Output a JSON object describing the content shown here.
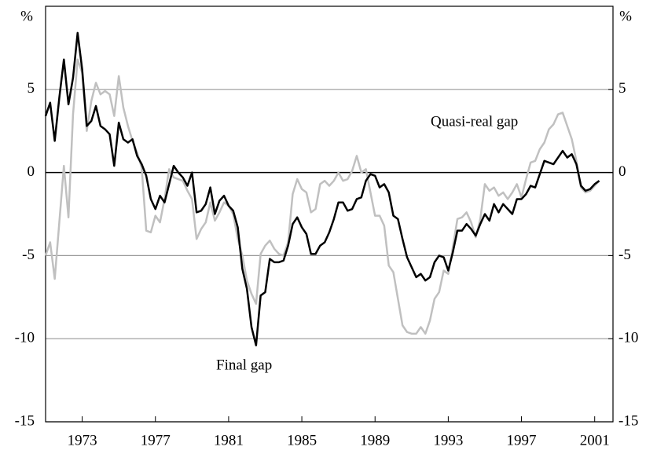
{
  "chart_data": {
    "type": "line",
    "unit_label": "%",
    "annotations": [
      {
        "text": "Quasi-real gap",
        "series": 1
      },
      {
        "text": "Final gap",
        "series": 0
      }
    ],
    "x": [
      1971,
      1971.25,
      1971.5,
      1971.75,
      1972,
      1972.25,
      1972.5,
      1972.75,
      1973,
      1973.25,
      1973.5,
      1973.75,
      1974,
      1974.25,
      1974.5,
      1974.75,
      1975,
      1975.25,
      1975.5,
      1975.75,
      1976,
      1976.25,
      1976.5,
      1976.75,
      1977,
      1977.25,
      1977.5,
      1977.75,
      1978,
      1978.25,
      1978.5,
      1978.75,
      1979,
      1979.25,
      1979.5,
      1979.75,
      1980,
      1980.25,
      1980.5,
      1980.75,
      1981,
      1981.25,
      1981.5,
      1981.75,
      1982,
      1982.25,
      1982.5,
      1982.75,
      1983,
      1983.25,
      1983.5,
      1983.75,
      1984,
      1984.25,
      1984.5,
      1984.75,
      1985,
      1985.25,
      1985.5,
      1985.75,
      1986,
      1986.25,
      1986.5,
      1986.75,
      1987,
      1987.25,
      1987.5,
      1987.75,
      1988,
      1988.25,
      1988.5,
      1988.75,
      1989,
      1989.25,
      1989.5,
      1989.75,
      1990,
      1990.25,
      1990.5,
      1990.75,
      1991,
      1991.25,
      1991.5,
      1991.75,
      1992,
      1992.25,
      1992.5,
      1992.75,
      1993,
      1993.25,
      1993.5,
      1993.75,
      1994,
      1994.25,
      1994.5,
      1994.75,
      1995,
      1995.25,
      1995.5,
      1995.75,
      1996,
      1996.25,
      1996.5,
      1996.75,
      1997,
      1997.25,
      1997.5,
      1997.75,
      1998,
      1998.25,
      1998.5,
      1998.75,
      1999,
      1999.25,
      1999.5,
      1999.75,
      2000,
      2000.25,
      2000.5,
      2000.75,
      2001,
      2001.25
    ],
    "series": [
      {
        "name": "Final gap",
        "color": "#000000",
        "values": [
          3.4,
          4.2,
          1.9,
          4.5,
          6.8,
          4.1,
          5.7,
          8.4,
          6.2,
          2.8,
          3.1,
          4.0,
          2.8,
          2.6,
          2.3,
          0.4,
          3.0,
          2.0,
          1.8,
          2.0,
          1.0,
          0.5,
          -0.2,
          -1.6,
          -2.2,
          -1.4,
          -1.8,
          -0.7,
          0.4,
          0.0,
          -0.3,
          -0.8,
          0.0,
          -2.4,
          -2.3,
          -1.9,
          -0.9,
          -2.5,
          -1.7,
          -1.4,
          -2.0,
          -2.3,
          -3.3,
          -5.8,
          -7.0,
          -9.3,
          -10.4,
          -7.4,
          -7.2,
          -5.2,
          -5.4,
          -5.4,
          -5.3,
          -4.4,
          -3.1,
          -2.7,
          -3.3,
          -3.7,
          -4.9,
          -4.9,
          -4.4,
          -4.2,
          -3.6,
          -2.8,
          -1.8,
          -1.8,
          -2.3,
          -2.2,
          -1.6,
          -1.5,
          -0.5,
          -0.1,
          -0.2,
          -0.9,
          -0.7,
          -1.2,
          -2.6,
          -2.8,
          -4.0,
          -5.1,
          -5.7,
          -6.3,
          -6.1,
          -6.5,
          -6.3,
          -5.4,
          -5.0,
          -5.1,
          -5.9,
          -4.8,
          -3.5,
          -3.5,
          -3.1,
          -3.4,
          -3.8,
          -3.1,
          -2.5,
          -2.9,
          -1.9,
          -2.4,
          -1.9,
          -2.2,
          -2.5,
          -1.6,
          -1.6,
          -1.3,
          -0.8,
          -0.9,
          -0.1,
          0.7,
          0.6,
          0.5,
          0.9,
          1.3,
          0.9,
          1.1,
          0.5,
          -0.8,
          -1.1,
          -1.0,
          -0.7,
          -0.5
        ]
      },
      {
        "name": "Quasi-real gap",
        "color": "#c0c0c0",
        "values": [
          -5.0,
          -4.2,
          -6.4,
          -3.0,
          0.4,
          -2.7,
          3.5,
          6.8,
          6.0,
          2.5,
          4.3,
          5.4,
          4.7,
          4.9,
          4.7,
          3.4,
          5.8,
          3.9,
          2.8,
          1.9,
          1.2,
          0.3,
          -3.5,
          -3.6,
          -2.6,
          -3.0,
          -1.6,
          0.2,
          -0.3,
          -0.4,
          -0.5,
          -1.1,
          -1.6,
          -4.0,
          -3.4,
          -3.0,
          -1.8,
          -2.9,
          -2.4,
          -1.8,
          -2.0,
          -2.5,
          -4.0,
          -5.0,
          -6.5,
          -7.3,
          -7.9,
          -4.9,
          -4.4,
          -4.1,
          -4.6,
          -4.9,
          -5.0,
          -4.2,
          -1.3,
          -0.4,
          -1.0,
          -1.2,
          -2.4,
          -2.2,
          -0.7,
          -0.5,
          -0.8,
          -0.5,
          0.0,
          -0.5,
          -0.4,
          0.1,
          1.0,
          0.0,
          0.2,
          -1.2,
          -2.6,
          -2.6,
          -3.2,
          -5.6,
          -6.0,
          -7.6,
          -9.2,
          -9.6,
          -9.7,
          -9.7,
          -9.3,
          -9.7,
          -8.9,
          -7.6,
          -7.2,
          -5.9,
          -6.1,
          -4.5,
          -2.8,
          -2.7,
          -2.4,
          -3.0,
          -3.9,
          -2.8,
          -0.7,
          -1.1,
          -0.9,
          -1.4,
          -1.2,
          -1.6,
          -1.2,
          -0.7,
          -1.5,
          -0.4,
          0.6,
          0.7,
          1.4,
          1.8,
          2.6,
          2.9,
          3.5,
          3.6,
          2.8,
          2.0,
          0.7,
          -0.9,
          -1.2,
          -1.1,
          -0.8,
          -0.5
        ]
      }
    ],
    "xlim": [
      1971,
      2002
    ],
    "xticks": [
      1973,
      1977,
      1981,
      1985,
      1989,
      1993,
      1997,
      2001
    ],
    "ylim": [
      -15,
      10
    ],
    "yticks": [
      -15,
      -10,
      -5,
      0,
      5
    ],
    "y2lim": [
      -15,
      10
    ],
    "y2ticks": [
      -15,
      -10,
      -5,
      0,
      5
    ],
    "grid": true,
    "grid_color": "#999999"
  }
}
